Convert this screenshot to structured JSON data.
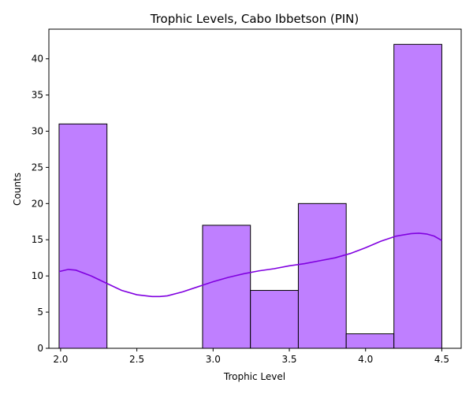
{
  "chart_data": {
    "type": "bar",
    "title": "Trophic Levels, Cabo Ibbetson (PIN)",
    "xlabel": "Trophic Level",
    "ylabel": "Counts",
    "xlim": [
      1.923,
      4.627
    ],
    "ylim": [
      0,
      44.1
    ],
    "bins": [
      {
        "x0": 1.99,
        "x1": 2.304,
        "count": 31
      },
      {
        "x0": 2.304,
        "x1": 2.617,
        "count": 0
      },
      {
        "x0": 2.617,
        "x1": 2.931,
        "count": 0
      },
      {
        "x0": 2.931,
        "x1": 3.245,
        "count": 17
      },
      {
        "x0": 3.245,
        "x1": 3.559,
        "count": 8
      },
      {
        "x0": 3.559,
        "x1": 3.873,
        "count": 20
      },
      {
        "x0": 3.873,
        "x1": 4.186,
        "count": 2
      },
      {
        "x0": 4.186,
        "x1": 4.5,
        "count": 42
      }
    ],
    "kde": {
      "x": [
        1.99,
        2.05,
        2.1,
        2.2,
        2.3,
        2.4,
        2.5,
        2.6,
        2.65,
        2.7,
        2.8,
        2.9,
        3.0,
        3.1,
        3.2,
        3.3,
        3.4,
        3.5,
        3.6,
        3.7,
        3.8,
        3.9,
        4.0,
        4.1,
        4.2,
        4.3,
        4.35,
        4.4,
        4.45,
        4.5
      ],
      "y": [
        10.6,
        10.9,
        10.8,
        10.0,
        9.0,
        8.0,
        7.4,
        7.15,
        7.15,
        7.25,
        7.8,
        8.5,
        9.2,
        9.8,
        10.3,
        10.7,
        11.0,
        11.4,
        11.7,
        12.1,
        12.5,
        13.1,
        13.9,
        14.8,
        15.5,
        15.85,
        15.9,
        15.8,
        15.5,
        14.9
      ]
    },
    "xticks": [
      2.0,
      2.5,
      3.0,
      3.5,
      4.0,
      4.5
    ],
    "xtick_labels": [
      "2.0",
      "2.5",
      "3.0",
      "3.5",
      "4.0",
      "4.5"
    ],
    "yticks": [
      0,
      5,
      10,
      15,
      20,
      25,
      30,
      35,
      40
    ],
    "ytick_labels": [
      "0",
      "5",
      "10",
      "15",
      "20",
      "25",
      "30",
      "35",
      "40"
    ],
    "bar_color": "#bf7fff",
    "line_color": "#8000e0",
    "grid": false
  }
}
